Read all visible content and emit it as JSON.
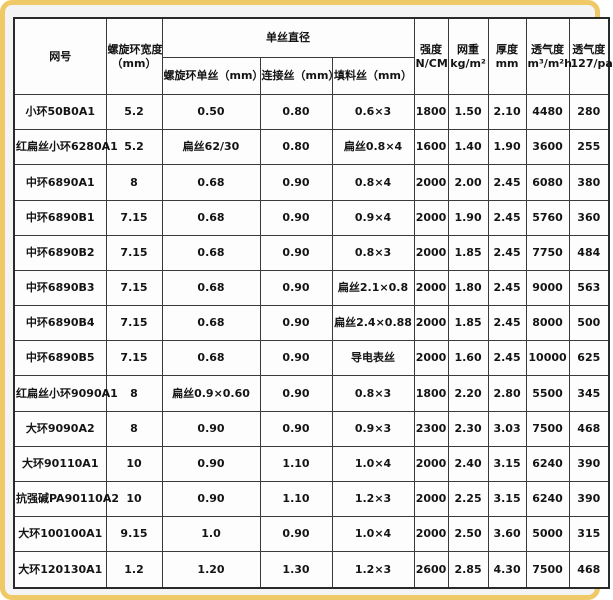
{
  "page": {
    "background": "#f4f4f4",
    "frame_color": "#eec966",
    "table_background": "#fdfdfd",
    "grid_color": "#3a3a3a",
    "text_color": "#141414"
  },
  "table": {
    "header": {
      "mesh_no": "网号",
      "spiral_width": [
        "螺旋环宽度",
        "（mm）"
      ],
      "mono_diameter_title": "单丝直径",
      "mono_sub": [
        "螺旋环单丝（mm）",
        "连接丝（mm）",
        "填料丝（mm）"
      ],
      "strength": [
        "强度",
        "N/CM"
      ],
      "net_weight": [
        "网重",
        "kg/m²"
      ],
      "thickness": [
        "厚度",
        "mm"
      ],
      "permeability_volume": [
        "透气度",
        "m³/m²h"
      ],
      "permeability_pressure": [
        "透气度",
        "127/pa"
      ]
    },
    "rows": [
      [
        "小环50B0A1",
        "5.2",
        "0.50",
        "0.80",
        "0.6×3",
        "1800",
        "1.50",
        "2.10",
        "4480",
        "280"
      ],
      [
        "红扁丝小环6280A1",
        "5.2",
        "扁丝62/30",
        "0.80",
        "扁丝0.8×4",
        "1600",
        "1.40",
        "1.90",
        "3600",
        "255"
      ],
      [
        "中环6890A1",
        "8",
        "0.68",
        "0.90",
        "0.8×4",
        "2000",
        "2.00",
        "2.45",
        "6080",
        "380"
      ],
      [
        "中环6890B1",
        "7.15",
        "0.68",
        "0.90",
        "0.9×4",
        "2000",
        "1.90",
        "2.45",
        "5760",
        "360"
      ],
      [
        "中环6890B2",
        "7.15",
        "0.68",
        "0.90",
        "0.8×3",
        "2000",
        "1.85",
        "2.45",
        "7750",
        "484"
      ],
      [
        "中环6890B3",
        "7.15",
        "0.68",
        "0.90",
        "扁丝2.1×0.8",
        "2000",
        "1.80",
        "2.45",
        "9000",
        "563"
      ],
      [
        "中环6890B4",
        "7.15",
        "0.68",
        "0.90",
        "扁丝2.4×0.88",
        "2000",
        "1.85",
        "2.45",
        "8000",
        "500"
      ],
      [
        "中环6890B5",
        "7.15",
        "0.68",
        "0.90",
        "导电表丝",
        "2000",
        "1.60",
        "2.45",
        "10000",
        "625"
      ],
      [
        "红扁丝小环9090A1",
        "8",
        "扁丝0.9×0.60",
        "0.90",
        "0.8×3",
        "1800",
        "2.20",
        "2.80",
        "5500",
        "345"
      ],
      [
        "大环9090A2",
        "8",
        "0.90",
        "0.90",
        "0.9×3",
        "2300",
        "2.30",
        "3.03",
        "7500",
        "468"
      ],
      [
        "大环90110A1",
        "10",
        "0.90",
        "1.10",
        "1.0×4",
        "2000",
        "2.40",
        "3.15",
        "6240",
        "390"
      ],
      [
        "抗强碱PA90110A2",
        "10",
        "0.90",
        "1.10",
        "1.2×3",
        "2000",
        "2.25",
        "3.15",
        "6240",
        "390"
      ],
      [
        "大环100100A1",
        "9.15",
        "1.0",
        "0.90",
        "1.0×4",
        "2000",
        "2.50",
        "3.60",
        "5000",
        "315"
      ],
      [
        "大环120130A1",
        "1.2",
        "1.20",
        "1.30",
        "1.2×3",
        "2600",
        "2.85",
        "4.30",
        "7500",
        "468"
      ]
    ]
  }
}
